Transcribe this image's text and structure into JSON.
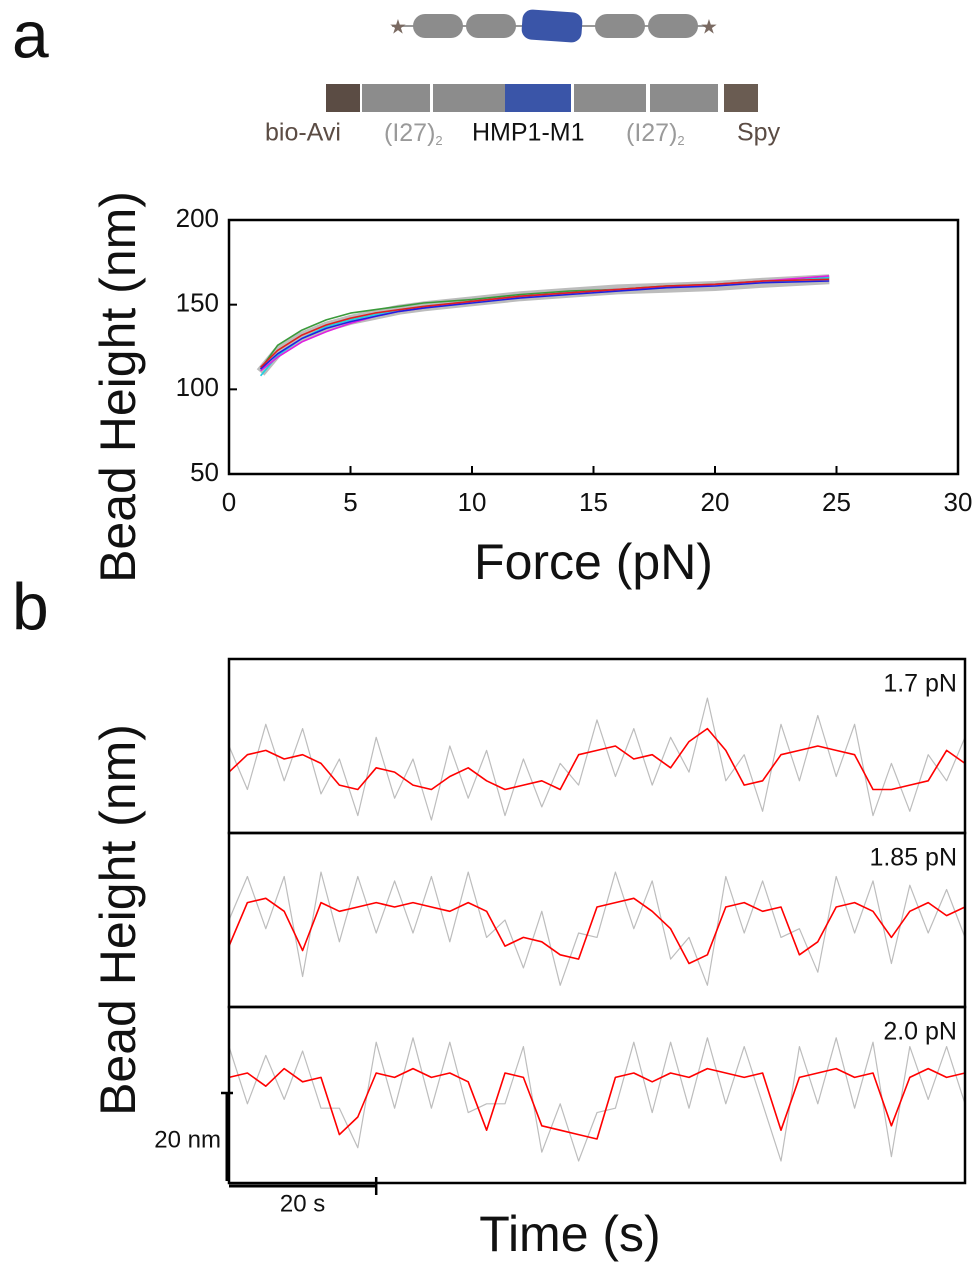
{
  "panel_labels": [
    "a",
    "b"
  ],
  "construct": {
    "labels": [
      {
        "text": "bio-Avi"
      },
      {
        "text": "(I27)",
        "subscript": "2"
      },
      {
        "text": "HMP1-M1"
      },
      {
        "text": "(I27)",
        "subscript": "2"
      },
      {
        "text": "Spy"
      }
    ]
  },
  "panel_b": {
    "xlabel": "Time (s)",
    "ylabel": "Bead Height (nm)",
    "x_scale_bar": {
      "value": 20,
      "label": "20 s"
    },
    "y_scale_bar": {
      "value": 20,
      "label": "20 nm"
    }
  },
  "chart_data": [
    {
      "type": "line",
      "xlabel": "Force (pN)",
      "ylabel": "Bead Height (nm)",
      "xlim": [
        0,
        30
      ],
      "ylim": [
        50,
        200
      ],
      "xticks": [
        0,
        5,
        10,
        15,
        20,
        25,
        30
      ],
      "yticks": [
        50,
        100,
        150,
        200
      ],
      "x": [
        1.3,
        2,
        3,
        4,
        5,
        6,
        7,
        8,
        10,
        12,
        14,
        16,
        18,
        20,
        22,
        24.7
      ],
      "series": [
        {
          "color": "#b5b5b5",
          "values": [
            110,
            122,
            131,
            137,
            141,
            144,
            147,
            149,
            152,
            155,
            157,
            159,
            160,
            161,
            163,
            165
          ]
        },
        {
          "color": "#3a9a3a",
          "values": [
            112,
            126,
            135,
            141,
            145,
            147,
            149,
            151,
            153,
            156,
            158,
            159,
            161,
            162,
            164,
            166
          ]
        },
        {
          "color": "#20d0e0",
          "values": [
            108,
            120,
            130,
            137,
            141,
            144,
            147,
            149,
            152,
            155,
            157,
            159,
            160,
            162,
            163,
            166
          ]
        },
        {
          "color": "#e020e0",
          "values": [
            111,
            119,
            128,
            134,
            139,
            143,
            146,
            148,
            152,
            155,
            157,
            159,
            160,
            162,
            164,
            167
          ]
        },
        {
          "color": "#2020e0",
          "values": [
            112,
            121,
            130,
            136,
            140,
            143,
            146,
            148,
            151,
            154,
            156,
            158,
            160,
            161,
            163,
            164
          ]
        },
        {
          "color": "#e02020",
          "values": [
            113,
            123,
            132,
            138,
            142,
            145,
            147,
            149,
            152,
            155,
            157,
            159,
            161,
            162,
            164,
            165
          ]
        }
      ]
    },
    {
      "type": "line",
      "annotation": "1.7 pN",
      "xlim": [
        0,
        100
      ],
      "ylim": [
        0,
        40
      ],
      "x": [
        0,
        2.5,
        5,
        7.5,
        10,
        12.5,
        15,
        17.5,
        20,
        22.5,
        25,
        27.5,
        30,
        32.5,
        35,
        37.5,
        40,
        42.5,
        45,
        47.5,
        50,
        52.5,
        55,
        57.5,
        60,
        62.5,
        65,
        67.5,
        70,
        72.5,
        75,
        77.5,
        80,
        82.5,
        85,
        87.5,
        90,
        92.5,
        95,
        97.5,
        100
      ],
      "series": [
        {
          "color": "#bdbdbd",
          "values": [
            20,
            10,
            25,
            12,
            24,
            9,
            17,
            4,
            22,
            8,
            17,
            3,
            20,
            8,
            19,
            4,
            17,
            6,
            16,
            11,
            26,
            13,
            24,
            11,
            22,
            14,
            31,
            12,
            18,
            5,
            25,
            12,
            27,
            13,
            25,
            4,
            16,
            5,
            18,
            12,
            22
          ]
        },
        {
          "color": "#ff0000",
          "values": [
            14,
            18,
            19,
            17,
            18,
            16,
            11,
            10,
            15,
            14,
            11,
            10,
            13,
            15,
            12,
            10,
            11,
            12,
            10,
            18,
            19,
            20,
            17,
            18,
            15,
            21,
            24,
            19,
            11,
            12,
            18,
            19,
            20,
            19,
            18,
            10,
            10,
            11,
            12,
            19,
            16
          ]
        }
      ]
    },
    {
      "type": "line",
      "annotation": "1.85 pN",
      "xlim": [
        0,
        100
      ],
      "ylim": [
        0,
        40
      ],
      "x": [
        0,
        2.5,
        5,
        7.5,
        10,
        12.5,
        15,
        17.5,
        20,
        22.5,
        25,
        27.5,
        30,
        32.5,
        35,
        37.5,
        40,
        42.5,
        45,
        47.5,
        50,
        52.5,
        55,
        57.5,
        60,
        62.5,
        65,
        67.5,
        70,
        72.5,
        75,
        77.5,
        80,
        82.5,
        85,
        87.5,
        90,
        92.5,
        95,
        97.5,
        100
      ],
      "series": [
        {
          "color": "#bdbdbd",
          "values": [
            20,
            30,
            18,
            30,
            7,
            31,
            15,
            30,
            17,
            29,
            17,
            30,
            15,
            31,
            16,
            20,
            9,
            22,
            5,
            17,
            16,
            31,
            18,
            29,
            11,
            16,
            5,
            30,
            17,
            29,
            16,
            18,
            8,
            30,
            17,
            29,
            10,
            28,
            17,
            27,
            16
          ]
        },
        {
          "color": "#ff0000",
          "values": [
            14,
            24,
            25,
            22,
            13,
            24,
            22,
            23,
            24,
            23,
            24,
            23,
            22,
            24,
            22,
            14,
            16,
            15,
            12,
            11,
            23,
            24,
            25,
            22,
            18,
            10,
            12,
            23,
            24,
            22,
            23,
            12,
            15,
            23,
            24,
            22,
            16,
            22,
            24,
            21,
            23
          ]
        }
      ]
    },
    {
      "type": "line",
      "annotation": "2.0 pN",
      "xlim": [
        0,
        100
      ],
      "ylim": [
        0,
        40
      ],
      "x": [
        0,
        2.5,
        5,
        7.5,
        10,
        12.5,
        15,
        17.5,
        20,
        22.5,
        25,
        27.5,
        30,
        32.5,
        35,
        37.5,
        40,
        42.5,
        45,
        47.5,
        50,
        52.5,
        55,
        57.5,
        60,
        62.5,
        65,
        67.5,
        70,
        72.5,
        75,
        77.5,
        80,
        82.5,
        85,
        87.5,
        90,
        92.5,
        95,
        97.5,
        100
      ],
      "series": [
        {
          "color": "#bdbdbd",
          "values": [
            31,
            18,
            29,
            19,
            30,
            17,
            17,
            8,
            32,
            17,
            33,
            17,
            32,
            16,
            18,
            18,
            31,
            7,
            18,
            5,
            16,
            17,
            32,
            16,
            32,
            17,
            33,
            18,
            31,
            18,
            5,
            31,
            18,
            33,
            17,
            32,
            6,
            31,
            19,
            31,
            18
          ]
        },
        {
          "color": "#ff0000",
          "values": [
            24,
            25,
            22,
            26,
            23,
            24,
            11,
            15,
            25,
            24,
            26,
            24,
            25,
            23,
            12,
            25,
            24,
            13,
            12,
            11,
            10,
            24,
            25,
            23,
            25,
            24,
            26,
            25,
            24,
            25,
            12,
            24,
            25,
            26,
            24,
            25,
            13,
            24,
            26,
            24,
            25
          ]
        }
      ]
    }
  ]
}
